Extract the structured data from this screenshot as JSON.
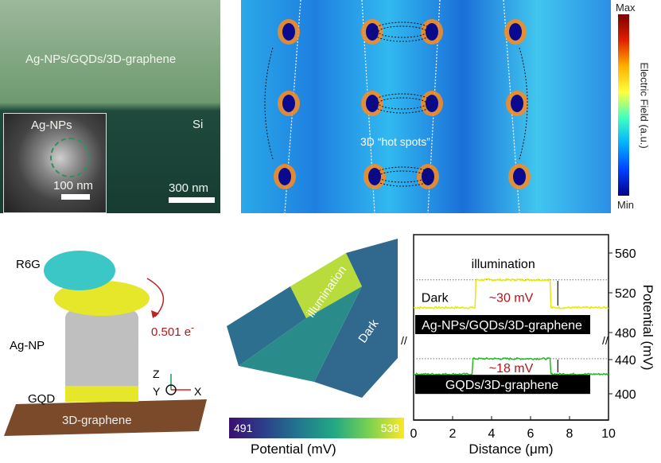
{
  "panel_a": {
    "film_label": "Ag-NPs/GQDs/3D-graphene",
    "substrate_label": "Si",
    "scale_label": "300 nm",
    "inset_label": "Ag-NPs",
    "inset_scale": "100 nm"
  },
  "panel_b": {
    "colorbar_max": "Max",
    "colorbar_min": "Min",
    "colorbar_label": "Electric Field (a.u.)",
    "annotation": "3D “hot spots”"
  },
  "panel_c": {
    "labels": {
      "r6g": "R6G",
      "agnp": "Ag-NP",
      "gqd": "GQD",
      "graphene": "3D-graphene",
      "charge": "0.501 e",
      "charge_sup": "-"
    },
    "axes": {
      "z": "Z",
      "y": "Y",
      "x": "X"
    }
  },
  "panel_d": {
    "illumination": "illumination",
    "dark": "Dark",
    "colorbar_min": "491",
    "colorbar_max": "538",
    "colorbar_label": "Potential (mV)"
  },
  "chart_data": {
    "type": "line",
    "xlabel": "Distance (μm)",
    "ylabel": "Potential (mV)",
    "xlim": [
      0,
      10
    ],
    "xticks": [
      "0",
      "2",
      "4",
      "6",
      "8",
      "10"
    ],
    "yticks_upper": [
      "480",
      "520",
      "560"
    ],
    "yticks_lower": [
      "400",
      "440"
    ],
    "ylim_upper": [
      470,
      575
    ],
    "ylim_lower": [
      385,
      450
    ],
    "axis_break": true,
    "annotations": {
      "illumination": "illumination",
      "dark": "Dark",
      "delta_upper": "~30 mV",
      "delta_lower": "~18 mV"
    },
    "series": [
      {
        "name": "Ag-NPs/GQDs/3D-graphene",
        "color": "#e8e800",
        "axis": "upper",
        "points": [
          [
            0,
            505
          ],
          [
            3.15,
            505
          ],
          [
            3.2,
            533
          ],
          [
            7.0,
            533
          ],
          [
            7.05,
            505
          ],
          [
            10,
            505
          ]
        ]
      },
      {
        "name": "GQDs/3D-graphene",
        "color": "#22bb22",
        "axis": "lower",
        "points": [
          [
            0,
            423
          ],
          [
            3.0,
            423
          ],
          [
            3.05,
            441
          ],
          [
            7.0,
            441
          ],
          [
            7.05,
            423
          ],
          [
            10,
            423
          ]
        ]
      }
    ],
    "reference_lines": [
      533,
      441
    ]
  }
}
